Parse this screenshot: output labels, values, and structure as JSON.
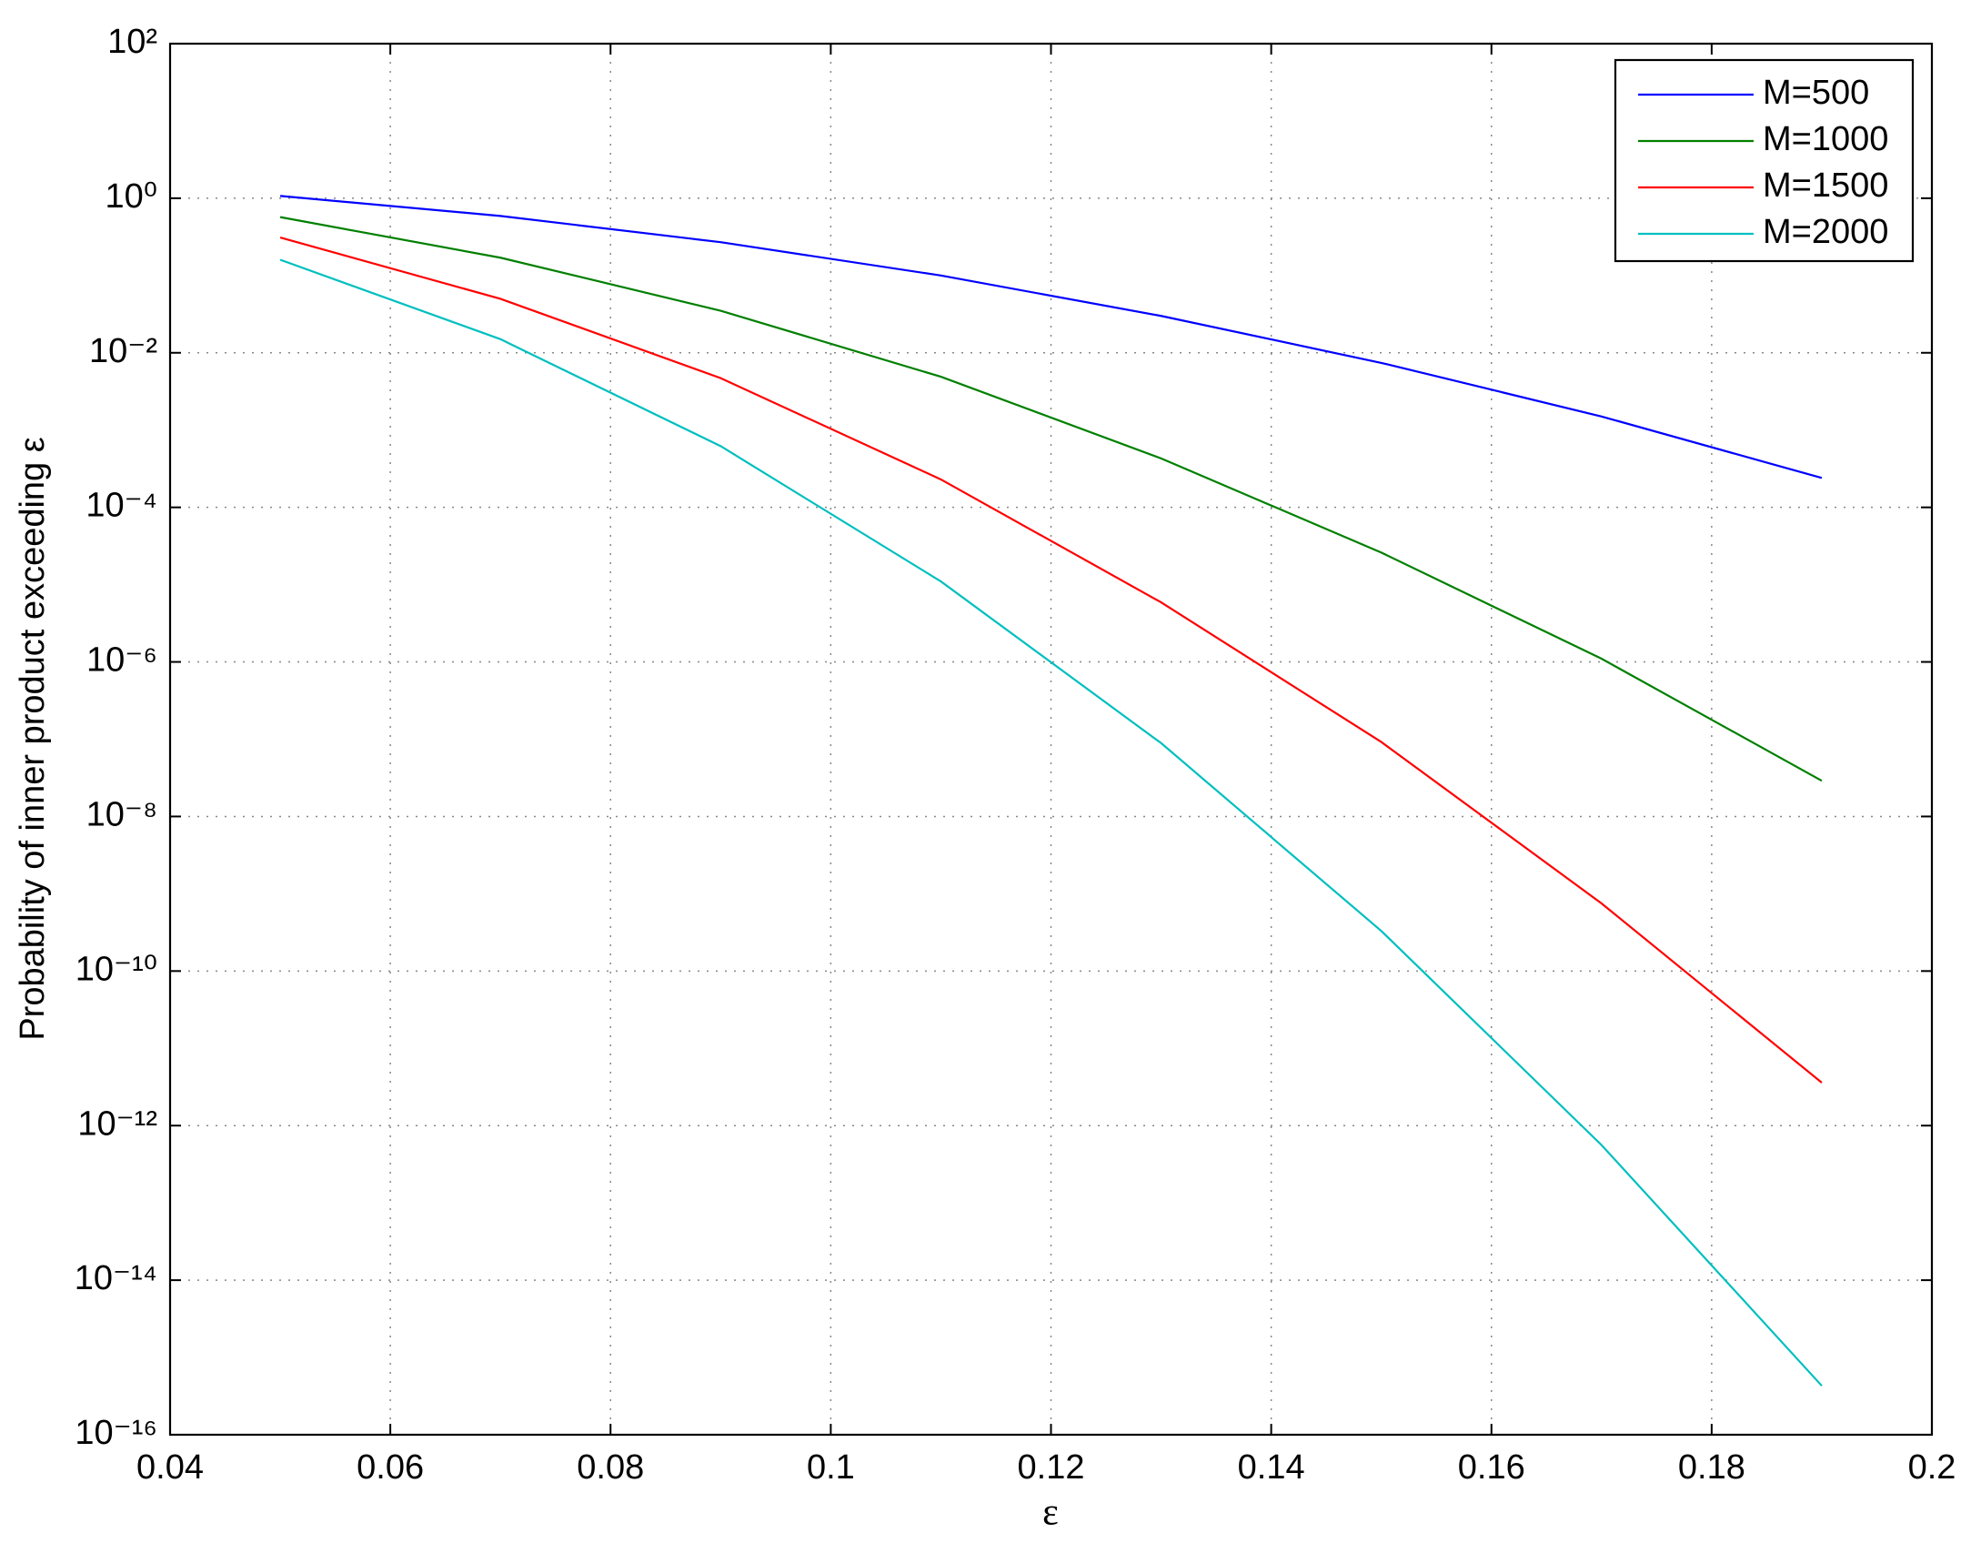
{
  "chart_data": {
    "type": "line",
    "xlabel": "ε",
    "ylabel": "Probability of inner product exceeding ε",
    "x": [
      0.05,
      0.07,
      0.09,
      0.11,
      0.13,
      0.15,
      0.17,
      0.19
    ],
    "series": [
      {
        "name": "M=500",
        "color": "#0000ff",
        "values": [
          1.07,
          0.59,
          0.27,
          0.1,
          0.03,
          0.0074,
          0.0015,
          0.00024
        ]
      },
      {
        "name": "M=1000",
        "color": "#008000",
        "values": [
          0.57,
          0.17,
          0.035,
          0.0049,
          0.00043,
          2.6e-05,
          1.1e-06,
          2.9e-08
        ]
      },
      {
        "name": "M=1500",
        "color": "#ff0000",
        "values": [
          0.31,
          0.05,
          0.0047,
          0.00023,
          5.9e-06,
          9.2e-08,
          7.5e-10,
          3.6e-12
        ]
      },
      {
        "name": "M=2000",
        "color": "#00bfbf",
        "values": [
          0.16,
          0.015,
          0.00062,
          1.1e-05,
          8.9e-08,
          3.3e-10,
          5.6e-13,
          4.3e-16
        ]
      }
    ],
    "xlim": [
      0.04,
      0.2
    ],
    "xticks": [
      0.04,
      0.06,
      0.08,
      0.1,
      0.12,
      0.14,
      0.16,
      0.18,
      0.2
    ],
    "ylim": [
      1e-16,
      100
    ],
    "ylog": true,
    "yticks": [
      {
        "value": 1e-16,
        "label": "10⁻¹⁶"
      },
      {
        "value": 1e-14,
        "label": "10⁻¹⁴"
      },
      {
        "value": 1e-12,
        "label": "10⁻¹²"
      },
      {
        "value": 1e-10,
        "label": "10⁻¹⁰"
      },
      {
        "value": 1e-08,
        "label": "10⁻⁸"
      },
      {
        "value": 1e-06,
        "label": "10⁻⁶"
      },
      {
        "value": 0.0001,
        "label": "10⁻⁴"
      },
      {
        "value": 0.01,
        "label": "10⁻²"
      },
      {
        "value": 1,
        "label": "10⁰"
      },
      {
        "value": 100,
        "label": "10²"
      }
    ],
    "grid": true,
    "legend": "top-right"
  }
}
